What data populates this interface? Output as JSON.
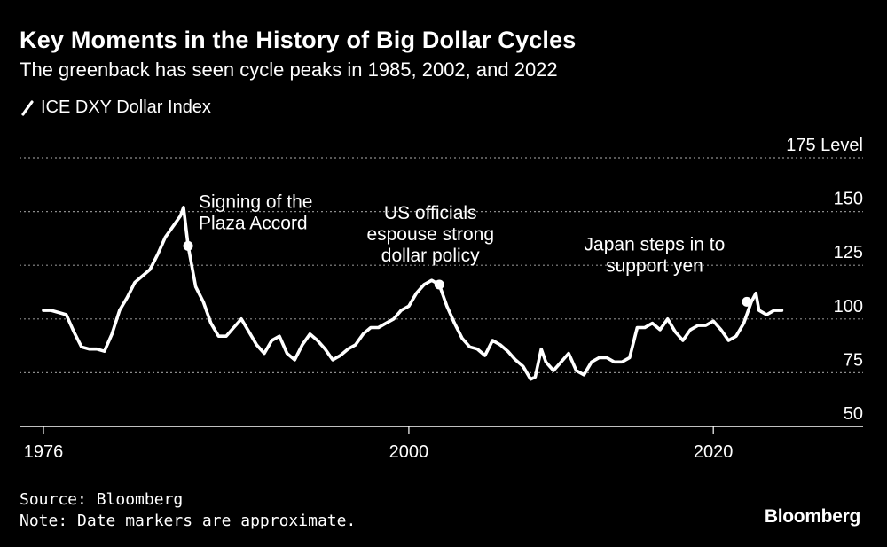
{
  "title": "Key Moments in the History of Big Dollar Cycles",
  "subtitle": "The greenback has seen cycle peaks in 1985, 2002, and 2022",
  "legend": {
    "label": "ICE DXY Dollar Index",
    "icon": "diagonal-line-icon"
  },
  "source": "Source: Bloomberg",
  "note": "Note: Date markers are approximate.",
  "brand": "Bloomberg",
  "colors": {
    "background": "#000000",
    "line": "#ffffff",
    "grid": "#8c8c8c",
    "text": "#ffffff"
  },
  "chart_data": {
    "type": "line",
    "title": "Key Moments in the History of Big Dollar Cycles",
    "subtitle": "The greenback has seen cycle peaks in 1985, 2002, and 2022",
    "xlabel": "",
    "ylabel": "Level",
    "y_unit_label": "175 Level",
    "xlim": [
      1976,
      2025
    ],
    "ylim": [
      50,
      175
    ],
    "x_ticks": [
      1976,
      2000,
      2020
    ],
    "y_ticks": [
      50,
      75,
      100,
      125,
      150
    ],
    "y_tick_labels": [
      "50",
      "75",
      "100",
      "125",
      "150",
      "175 Level"
    ],
    "grid": "horizontal dotted",
    "legend_position": "top-left",
    "series": [
      {
        "name": "ICE DXY Dollar Index",
        "x": [
          1976,
          1976.5,
          1977,
          1977.5,
          1978,
          1978.5,
          1979,
          1979.5,
          1980,
          1980.5,
          1981,
          1981.5,
          1982,
          1982.5,
          1983,
          1983.5,
          1984,
          1984.5,
          1985,
          1985.2,
          1985.5,
          1986,
          1986.5,
          1987,
          1987.5,
          1988,
          1988.5,
          1989,
          1989.5,
          1990,
          1990.5,
          1991,
          1991.5,
          1992,
          1992.5,
          1993,
          1993.5,
          1994,
          1994.5,
          1995,
          1995.5,
          1996,
          1996.5,
          1997,
          1997.5,
          1998,
          1998.5,
          1999,
          1999.5,
          2000,
          2000.5,
          2001,
          2001.5,
          2002,
          2002.5,
          2003,
          2003.5,
          2004,
          2004.5,
          2005,
          2005.5,
          2006,
          2006.5,
          2007,
          2007.5,
          2008,
          2008.3,
          2008.7,
          2009,
          2009.5,
          2010,
          2010.5,
          2011,
          2011.5,
          2012,
          2012.5,
          2013,
          2013.5,
          2014,
          2014.5,
          2015,
          2015.5,
          2016,
          2016.5,
          2017,
          2017.5,
          2018,
          2018.5,
          2019,
          2019.5,
          2020,
          2020.5,
          2021,
          2021.5,
          2022,
          2022.5,
          2022.8,
          2023,
          2023.5,
          2024,
          2024.5
        ],
        "values": [
          104,
          104,
          103,
          102,
          94,
          87,
          86,
          86,
          85,
          93,
          104,
          110,
          117,
          120,
          123,
          130,
          138,
          143,
          148,
          152,
          134,
          115,
          108,
          98,
          92,
          92,
          96,
          100,
          94,
          88,
          84,
          90,
          92,
          84,
          81,
          88,
          93,
          90,
          86,
          81,
          83,
          86,
          88,
          93,
          96,
          96,
          98,
          100,
          104,
          106,
          112,
          116,
          118,
          116,
          106,
          98,
          91,
          87,
          86,
          83,
          90,
          88,
          85,
          81,
          78,
          72,
          73,
          86,
          80,
          76,
          80,
          84,
          76,
          74,
          80,
          82,
          82,
          80,
          80,
          82,
          96,
          96,
          98,
          95,
          100,
          94,
          90,
          95,
          97,
          97,
          99,
          95,
          90,
          92,
          98,
          108,
          112,
          104,
          102,
          104,
          104
        ],
        "color": "#ffffff"
      }
    ],
    "annotations": [
      {
        "x": 1985.5,
        "y": 134,
        "lines": [
          "Signing of the",
          "Plaza Accord"
        ]
      },
      {
        "x": 2002,
        "y": 116,
        "lines": [
          "US officials",
          "espouse strong",
          "dollar policy"
        ]
      },
      {
        "x": 2022.2,
        "y": 108,
        "lines": [
          "Japan steps in to",
          "support yen"
        ]
      }
    ]
  }
}
